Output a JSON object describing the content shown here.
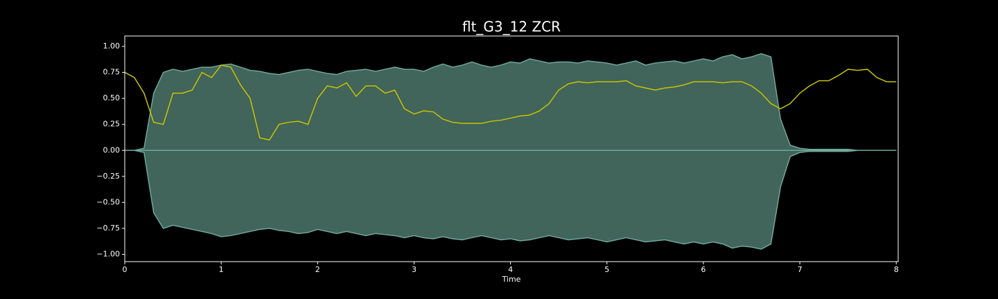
{
  "chart_data": {
    "type": "waveform",
    "title": "flt_G3_12 ZCR",
    "x_label": "Time",
    "x": [
      0,
      0.1,
      0.2,
      0.3,
      0.4,
      0.5,
      0.6,
      0.7,
      0.8,
      0.9,
      1.0,
      1.1,
      1.2,
      1.3,
      1.4,
      1.5,
      1.6,
      1.7,
      1.8,
      1.9,
      2.0,
      2.1,
      2.2,
      2.3,
      2.4,
      2.5,
      2.6,
      2.7,
      2.8,
      2.9,
      3.0,
      3.1,
      3.2,
      3.3,
      3.4,
      3.5,
      3.6,
      3.7,
      3.8,
      3.9,
      4.0,
      4.1,
      4.2,
      4.3,
      4.4,
      4.5,
      4.6,
      4.7,
      4.8,
      4.9,
      5.0,
      5.1,
      5.2,
      5.3,
      5.4,
      5.5,
      5.6,
      5.7,
      5.8,
      5.9,
      6.0,
      6.1,
      6.2,
      6.3,
      6.4,
      6.5,
      6.6,
      6.7,
      6.8,
      6.9,
      7.0,
      7.1,
      7.2,
      7.3,
      7.4,
      7.5,
      7.6,
      7.7,
      7.8,
      7.9,
      8.0
    ],
    "series": [
      {
        "type": "area",
        "color": "#41645b",
        "stroke": "#6fa99a",
        "upper": [
          0,
          0,
          0.02,
          0.55,
          0.75,
          0.78,
          0.76,
          0.78,
          0.8,
          0.8,
          0.82,
          0.83,
          0.8,
          0.77,
          0.76,
          0.74,
          0.73,
          0.75,
          0.77,
          0.78,
          0.76,
          0.74,
          0.73,
          0.76,
          0.77,
          0.78,
          0.76,
          0.78,
          0.8,
          0.78,
          0.78,
          0.76,
          0.8,
          0.83,
          0.8,
          0.82,
          0.85,
          0.82,
          0.8,
          0.82,
          0.85,
          0.84,
          0.88,
          0.86,
          0.84,
          0.85,
          0.85,
          0.84,
          0.86,
          0.85,
          0.84,
          0.82,
          0.84,
          0.86,
          0.82,
          0.84,
          0.85,
          0.86,
          0.84,
          0.86,
          0.88,
          0.86,
          0.9,
          0.92,
          0.88,
          0.9,
          0.93,
          0.9,
          0.3,
          0.05,
          0.02,
          0.01,
          0.01,
          0.01,
          0.01,
          0.01,
          0,
          0,
          0,
          0,
          0
        ],
        "lower": [
          0,
          0,
          -0.02,
          -0.6,
          -0.75,
          -0.72,
          -0.74,
          -0.76,
          -0.78,
          -0.8,
          -0.83,
          -0.82,
          -0.8,
          -0.78,
          -0.76,
          -0.75,
          -0.77,
          -0.78,
          -0.8,
          -0.79,
          -0.76,
          -0.78,
          -0.8,
          -0.78,
          -0.8,
          -0.82,
          -0.8,
          -0.81,
          -0.82,
          -0.84,
          -0.82,
          -0.84,
          -0.85,
          -0.83,
          -0.85,
          -0.86,
          -0.84,
          -0.82,
          -0.84,
          -0.86,
          -0.85,
          -0.87,
          -0.86,
          -0.84,
          -0.82,
          -0.84,
          -0.86,
          -0.85,
          -0.84,
          -0.86,
          -0.88,
          -0.86,
          -0.84,
          -0.86,
          -0.88,
          -0.87,
          -0.86,
          -0.88,
          -0.9,
          -0.88,
          -0.9,
          -0.88,
          -0.9,
          -0.94,
          -0.92,
          -0.93,
          -0.95,
          -0.9,
          -0.35,
          -0.06,
          -0.02,
          -0.01,
          -0.01,
          -0.01,
          -0.01,
          -0.01,
          0,
          0,
          0,
          0,
          0
        ]
      },
      {
        "type": "line",
        "color": "#c8c400",
        "values": [
          0.75,
          0.7,
          0.55,
          0.27,
          0.25,
          0.55,
          0.55,
          0.58,
          0.75,
          0.7,
          0.82,
          0.8,
          0.63,
          0.5,
          0.12,
          0.1,
          0.25,
          0.27,
          0.28,
          0.25,
          0.5,
          0.62,
          0.6,
          0.65,
          0.52,
          0.62,
          0.62,
          0.55,
          0.58,
          0.4,
          0.35,
          0.38,
          0.37,
          0.3,
          0.27,
          0.26,
          0.26,
          0.26,
          0.28,
          0.29,
          0.31,
          0.33,
          0.34,
          0.38,
          0.45,
          0.58,
          0.64,
          0.66,
          0.65,
          0.66,
          0.66,
          0.66,
          0.67,
          0.62,
          0.6,
          0.58,
          0.6,
          0.61,
          0.63,
          0.66,
          0.66,
          0.66,
          0.65,
          0.66,
          0.66,
          0.62,
          0.55,
          0.45,
          0.4,
          0.45,
          0.55,
          0.62,
          0.67,
          0.67,
          0.72,
          0.78,
          0.77,
          0.78,
          0.7,
          0.66,
          0.66
        ]
      }
    ],
    "xlim": [
      0,
      8.02
    ],
    "ylim": [
      -1.07,
      1.1
    ],
    "xticks": [
      0,
      1,
      2,
      3,
      4,
      5,
      6,
      7,
      8
    ],
    "yticks": [
      {
        "value": 1,
        "label": "1.00"
      },
      {
        "value": 0.75,
        "label": "0.75"
      },
      {
        "value": 0.5,
        "label": "0.50"
      },
      {
        "value": 0.25,
        "label": "0.25"
      },
      {
        "value": 0,
        "label": "0.00"
      },
      {
        "value": -0.25,
        "label": "−0.25"
      },
      {
        "value": -0.5,
        "label": "−0.50"
      },
      {
        "value": -0.75,
        "label": "−0.75"
      },
      {
        "value": -1,
        "label": "−1.00"
      }
    ],
    "grid": false
  }
}
